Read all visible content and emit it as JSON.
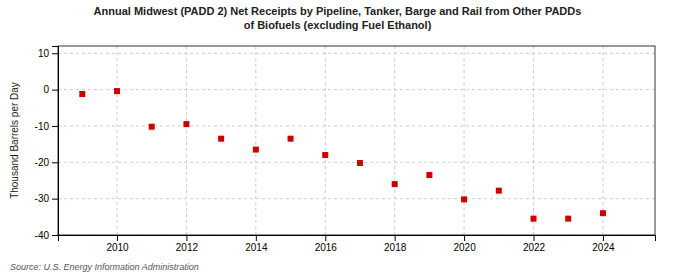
{
  "chart_data": {
    "type": "scatter",
    "title": "Annual Midwest (PADD 2) Net Receipts by Pipeline, Tanker, Barge and Rail from Other PADDs\nof Biofuels (excluding Fuel Ethanol)",
    "ylabel": "Thousand Barrels per Day",
    "source": "Source: U.S. Energy Information Administration",
    "x": [
      2009,
      2010,
      2011,
      2012,
      2013,
      2014,
      2015,
      2016,
      2017,
      2018,
      2019,
      2020,
      2021,
      2022,
      2023,
      2024
    ],
    "values": [
      -1.2,
      -0.4,
      -10.2,
      -9.5,
      -13.5,
      -16.5,
      -13.5,
      -18.0,
      -20.2,
      -26.0,
      -23.5,
      -30.2,
      -27.8,
      -35.5,
      -35.5,
      -34.0
    ],
    "color": "#cc0000",
    "marker": "square",
    "xlim": [
      2008.3,
      2025.5
    ],
    "xticks": [
      2010,
      2012,
      2014,
      2016,
      2018,
      2020,
      2022,
      2024
    ],
    "ylim": [
      -40,
      12
    ],
    "yticks": [
      -40,
      -30,
      -20,
      -10,
      0,
      10
    ],
    "grid": true
  }
}
